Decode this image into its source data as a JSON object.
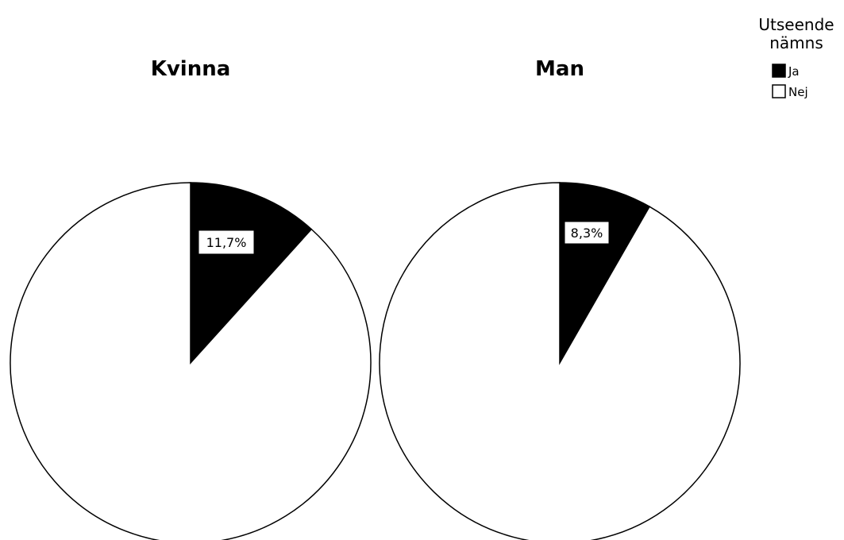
{
  "chart_data": {
    "type": "pie",
    "legend": {
      "title_lines": [
        "Utseende",
        "nämns"
      ],
      "entries": [
        {
          "label": "Ja",
          "color": "#000000"
        },
        {
          "label": "Nej",
          "color": "#ffffff"
        }
      ],
      "placement": "top-right"
    },
    "pies": [
      {
        "title": "Kvinna",
        "slices": [
          {
            "label": "Ja",
            "value": 11.7,
            "data_label": "11,7%",
            "color": "#000000"
          },
          {
            "label": "Nej",
            "value": 88.3,
            "color": "#ffffff"
          }
        ]
      },
      {
        "title": "Man",
        "slices": [
          {
            "label": "Ja",
            "value": 8.3,
            "data_label": "8,3%",
            "color": "#000000"
          },
          {
            "label": "Nej",
            "value": 91.7,
            "color": "#ffffff"
          }
        ]
      }
    ]
  }
}
